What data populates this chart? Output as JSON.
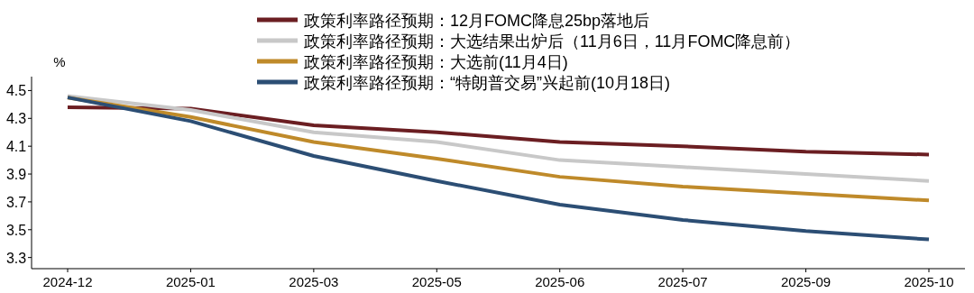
{
  "chart_data": {
    "type": "line",
    "ylabel": "%",
    "categories": [
      "2024-12",
      "2025-01",
      "2025-03",
      "2025-05",
      "2025-06",
      "2025-07",
      "2025-09",
      "2025-10"
    ],
    "series": [
      {
        "name": "政策利率路径预期：12月FOMC降息25bp落地后",
        "color": "#6b1e22",
        "values": [
          4.38,
          4.37,
          4.25,
          4.2,
          4.13,
          4.1,
          4.06,
          4.04
        ]
      },
      {
        "name": "政策利率路径预期：大选结果出炉后（11月6日，11月FOMC降息前）",
        "color": "#c8c8c8",
        "values": [
          4.46,
          4.36,
          4.2,
          4.13,
          4.0,
          3.95,
          3.9,
          3.85
        ]
      },
      {
        "name": "政策利率路径预期：大选前(11月4日)",
        "color": "#bf8a2a",
        "values": [
          4.45,
          4.31,
          4.13,
          4.01,
          3.88,
          3.81,
          3.76,
          3.71
        ]
      },
      {
        "name": "政策利率路径预期：“特朗普交易”兴起前(10月18日)",
        "color": "#2c4e74",
        "values": [
          4.45,
          4.28,
          4.03,
          3.85,
          3.68,
          3.57,
          3.49,
          3.43
        ]
      }
    ],
    "ylim": [
      3.22,
      4.6
    ],
    "yticks": [
      3.3,
      3.5,
      3.7,
      3.9,
      4.1,
      4.3,
      4.5
    ],
    "legend": "top"
  }
}
